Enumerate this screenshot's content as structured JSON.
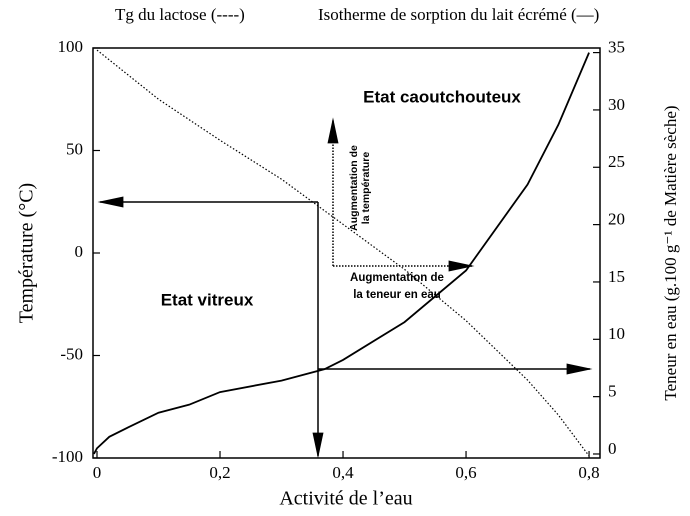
{
  "chart_data": {
    "type": "line",
    "xlabel": "Activité de l’eau",
    "ylabel": "Température (°C)",
    "y2label": "Teneur en eau (g.100 g⁻¹ de Matière sèche)",
    "annotations": [
      "Etat caoutchouteux",
      "Etat vitreux",
      "Augmentation de",
      "la température",
      "Augmentation de",
      "la teneur en eau"
    ],
    "xlim": [
      -0.0065,
      0.8178
    ],
    "xticks": [
      0,
      {
        "value": 0.2,
        "label": "0,2"
      },
      {
        "value": 0.4,
        "label": "0,4"
      },
      {
        "value": 0.6,
        "label": "0,6"
      },
      {
        "value": 0.8,
        "label": "0,8"
      }
    ],
    "ylim": [
      -100,
      100
    ],
    "yticks": [
      -100,
      -50,
      0,
      50,
      100
    ],
    "y2lim": [
      -0.35,
      35.4
    ],
    "y2ticks": [
      0,
      5,
      10,
      15,
      20,
      25,
      30,
      35
    ],
    "series": [
      {
        "name": "Tg du lactose (----)",
        "color": "#000000",
        "dash": "dotted",
        "x": [
          0,
          0.05,
          0.1,
          0.2,
          0.3,
          0.4,
          0.5,
          0.6,
          0.7,
          0.75,
          0.8
        ],
        "values": [
          99,
          87,
          75,
          55,
          36,
          14,
          -8,
          -33,
          -62,
          -79,
          -99
        ]
      },
      {
        "name": "Isotherme de sorption du lait écrémé (—)",
        "color": "#000000",
        "dash": "solid",
        "axis": "y2",
        "x": [
          -0.005,
          0,
          0.02,
          0.05,
          0.1,
          0.15,
          0.2,
          0.3,
          0.37,
          0.4,
          0.5,
          0.6,
          0.7,
          0.75,
          0.8
        ],
        "values": [
          0,
          0.5,
          1.5,
          2.3,
          3.6,
          4.3,
          5.4,
          6.4,
          7.4,
          8.2,
          11.5,
          16,
          23.5,
          28.7,
          35
        ]
      }
    ]
  }
}
